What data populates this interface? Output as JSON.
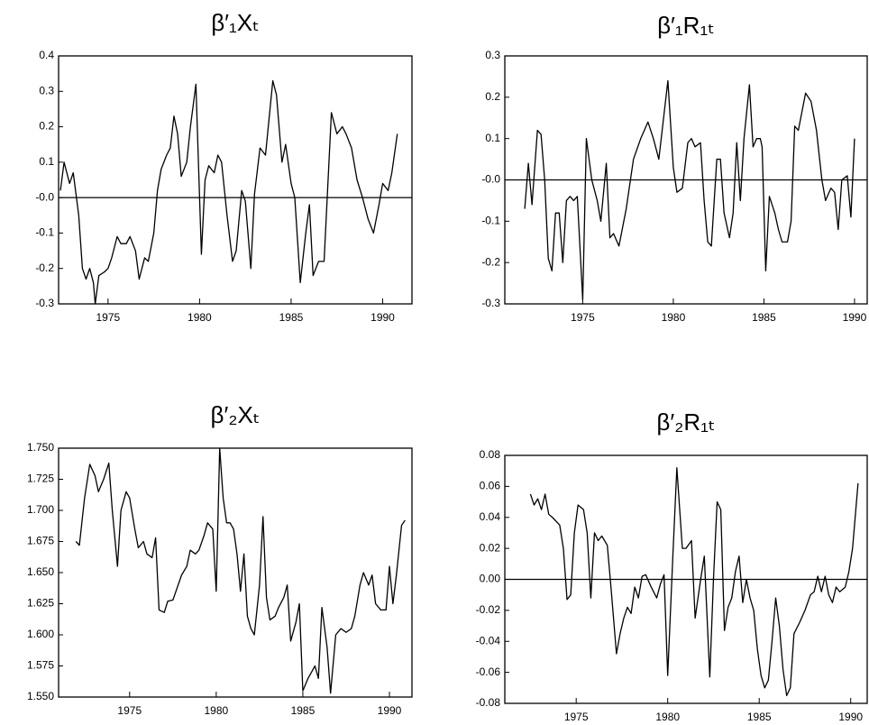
{
  "chart_data": [
    {
      "type": "line",
      "title": "β′₁Xₜ",
      "color": "#000000",
      "zero_line": true,
      "xlim": [
        1972.3,
        1991.6
      ],
      "xticks": [
        1975,
        1980,
        1985,
        1990
      ],
      "ylim": [
        -0.3,
        0.4
      ],
      "yticks": [
        -0.3,
        -0.2,
        -0.1,
        {
          "value": 0,
          "label": "-0.0"
        },
        0.1,
        0.2,
        0.3,
        0.4
      ],
      "x": [
        1972.4,
        1972.6,
        1972.9,
        1973.1,
        1973.4,
        1973.6,
        1973.8,
        1974.0,
        1974.2,
        1974.3,
        1974.5,
        1974.8,
        1975.0,
        1975.2,
        1975.5,
        1975.7,
        1976.0,
        1976.2,
        1976.5,
        1976.7,
        1977.0,
        1977.2,
        1977.5,
        1977.7,
        1977.9,
        1978.2,
        1978.4,
        1978.6,
        1978.8,
        1979.0,
        1979.3,
        1979.5,
        1979.8,
        1980.1,
        1980.3,
        1980.5,
        1980.8,
        1981.0,
        1981.2,
        1981.5,
        1981.8,
        1982.0,
        1982.3,
        1982.5,
        1982.8,
        1983.0,
        1983.3,
        1983.6,
        1984.0,
        1984.2,
        1984.5,
        1984.7,
        1985.0,
        1985.2,
        1985.5,
        1985.8,
        1986.0,
        1986.2,
        1986.5,
        1986.8,
        1987.2,
        1987.5,
        1987.8,
        1988.0,
        1988.3,
        1988.6,
        1988.9,
        1989.2,
        1989.5,
        1989.8,
        1990.0,
        1990.3,
        1990.5,
        1990.8
      ],
      "values": [
        0.02,
        0.1,
        0.04,
        0.07,
        -0.05,
        -0.2,
        -0.23,
        -0.2,
        -0.24,
        -0.3,
        -0.22,
        -0.21,
        -0.2,
        -0.17,
        -0.11,
        -0.13,
        -0.13,
        -0.11,
        -0.15,
        -0.23,
        -0.17,
        -0.18,
        -0.1,
        0.02,
        0.08,
        0.12,
        0.14,
        0.23,
        0.18,
        0.06,
        0.1,
        0.2,
        0.32,
        -0.16,
        0.05,
        0.09,
        0.07,
        0.12,
        0.1,
        -0.05,
        -0.18,
        -0.15,
        0.02,
        -0.01,
        -0.2,
        0.01,
        0.14,
        0.12,
        0.33,
        0.29,
        0.1,
        0.15,
        0.04,
        0.0,
        -0.24,
        -0.1,
        -0.02,
        -0.22,
        -0.18,
        -0.18,
        0.24,
        0.18,
        0.2,
        0.18,
        0.14,
        0.05,
        0.0,
        -0.06,
        -0.1,
        -0.02,
        0.04,
        0.02,
        0.07,
        0.18
      ]
    },
    {
      "type": "line",
      "title": "β′₁R₁ₜ",
      "color": "#000000",
      "zero_line": true,
      "xlim": [
        1970.7,
        1990.7
      ],
      "xticks": [
        1975,
        1980,
        1985,
        1990
      ],
      "ylim": [
        -0.3,
        0.3
      ],
      "yticks": [
        -0.3,
        -0.2,
        -0.1,
        {
          "value": 0,
          "label": "-0.0"
        },
        0.1,
        0.2,
        0.3
      ],
      "x": [
        1971.8,
        1972.0,
        1972.2,
        1972.5,
        1972.7,
        1972.9,
        1973.1,
        1973.3,
        1973.5,
        1973.7,
        1973.9,
        1974.1,
        1974.3,
        1974.5,
        1974.7,
        1975.0,
        1975.2,
        1975.5,
        1975.8,
        1976.0,
        1976.3,
        1976.5,
        1976.7,
        1977.0,
        1977.4,
        1977.8,
        1978.2,
        1978.6,
        1978.9,
        1979.2,
        1979.7,
        1980.0,
        1980.2,
        1980.5,
        1980.8,
        1981.0,
        1981.2,
        1981.5,
        1981.7,
        1981.9,
        1982.1,
        1982.4,
        1982.6,
        1982.8,
        1983.1,
        1983.3,
        1983.5,
        1983.7,
        1983.9,
        1984.2,
        1984.4,
        1984.6,
        1984.8,
        1984.9,
        1985.1,
        1985.3,
        1985.6,
        1985.8,
        1986.0,
        1986.3,
        1986.5,
        1986.7,
        1986.9,
        1987.3,
        1987.6,
        1987.9,
        1988.2,
        1988.4,
        1988.7,
        1988.9,
        1989.1,
        1989.3,
        1989.6,
        1989.8,
        1990.0
      ],
      "values": [
        -0.07,
        0.04,
        -0.06,
        0.12,
        0.11,
        0.0,
        -0.19,
        -0.22,
        -0.08,
        -0.08,
        -0.2,
        -0.05,
        -0.04,
        -0.05,
        -0.04,
        -0.29,
        0.1,
        0.0,
        -0.05,
        -0.1,
        0.04,
        -0.14,
        -0.13,
        -0.16,
        -0.07,
        0.05,
        0.1,
        0.14,
        0.1,
        0.05,
        0.24,
        0.03,
        -0.03,
        -0.02,
        0.09,
        0.1,
        0.08,
        0.09,
        -0.05,
        -0.15,
        -0.16,
        0.05,
        0.05,
        -0.08,
        -0.14,
        -0.08,
        0.09,
        -0.05,
        0.1,
        0.23,
        0.08,
        0.1,
        0.1,
        0.08,
        -0.22,
        -0.04,
        -0.08,
        -0.12,
        -0.15,
        -0.15,
        -0.1,
        0.13,
        0.12,
        0.21,
        0.19,
        0.12,
        0.0,
        -0.05,
        -0.02,
        -0.03,
        -0.12,
        0.0,
        0.01,
        -0.09,
        0.1
      ]
    },
    {
      "type": "line",
      "title": "β′₂Xₜ",
      "color": "#000000",
      "zero_line": false,
      "xlim": [
        1970.9,
        1991.3
      ],
      "xticks": [
        1975,
        1980,
        1985,
        1990
      ],
      "ylim": [
        1.55,
        1.75
      ],
      "yticks": [
        {
          "value": 1.55,
          "label": "1.550"
        },
        {
          "value": 1.575,
          "label": "1.575"
        },
        {
          "value": 1.6,
          "label": "1.600"
        },
        {
          "value": 1.625,
          "label": "1.625"
        },
        {
          "value": 1.65,
          "label": "1.650"
        },
        {
          "value": 1.675,
          "label": "1.675"
        },
        {
          "value": 1.7,
          "label": "1.700"
        },
        {
          "value": 1.725,
          "label": "1.725"
        },
        {
          "value": 1.75,
          "label": "1.750"
        }
      ],
      "x": [
        1971.9,
        1972.1,
        1972.4,
        1972.7,
        1973.0,
        1973.2,
        1973.5,
        1973.8,
        1974.0,
        1974.3,
        1974.5,
        1974.8,
        1975.0,
        1975.3,
        1975.5,
        1975.8,
        1976.0,
        1976.3,
        1976.5,
        1976.7,
        1977.0,
        1977.2,
        1977.5,
        1977.8,
        1978.0,
        1978.3,
        1978.5,
        1978.8,
        1979.0,
        1979.3,
        1979.5,
        1979.8,
        1980.0,
        1980.2,
        1980.4,
        1980.6,
        1980.8,
        1981.0,
        1981.2,
        1981.4,
        1981.6,
        1981.8,
        1982.0,
        1982.2,
        1982.5,
        1982.7,
        1982.9,
        1983.1,
        1983.4,
        1983.6,
        1983.9,
        1984.1,
        1984.3,
        1984.6,
        1984.8,
        1985.0,
        1985.3,
        1985.5,
        1985.7,
        1985.9,
        1986.1,
        1986.4,
        1986.6,
        1986.9,
        1987.2,
        1987.5,
        1987.8,
        1988.0,
        1988.3,
        1988.5,
        1988.8,
        1989.0,
        1989.2,
        1989.5,
        1989.8,
        1990.0,
        1990.2,
        1990.4,
        1990.7,
        1990.9
      ],
      "values": [
        1.675,
        1.672,
        1.71,
        1.737,
        1.728,
        1.715,
        1.725,
        1.738,
        1.7,
        1.655,
        1.7,
        1.715,
        1.71,
        1.685,
        1.67,
        1.675,
        1.665,
        1.662,
        1.678,
        1.62,
        1.618,
        1.627,
        1.628,
        1.64,
        1.648,
        1.655,
        1.668,
        1.665,
        1.668,
        1.68,
        1.69,
        1.685,
        1.635,
        1.75,
        1.71,
        1.69,
        1.69,
        1.685,
        1.665,
        1.635,
        1.665,
        1.615,
        1.605,
        1.6,
        1.64,
        1.695,
        1.63,
        1.612,
        1.615,
        1.622,
        1.63,
        1.64,
        1.595,
        1.61,
        1.625,
        1.555,
        1.565,
        1.57,
        1.575,
        1.565,
        1.622,
        1.59,
        1.553,
        1.6,
        1.605,
        1.602,
        1.605,
        1.615,
        1.64,
        1.65,
        1.64,
        1.648,
        1.625,
        1.62,
        1.62,
        1.655,
        1.625,
        1.648,
        1.688,
        1.692
      ]
    },
    {
      "type": "line",
      "title": "β′₂R₁ₜ",
      "color": "#000000",
      "zero_line": true,
      "xlim": [
        1971.1,
        1990.9
      ],
      "xticks": [
        1975,
        1980,
        1985,
        1990
      ],
      "ylim": [
        -0.08,
        0.08
      ],
      "yticks": [
        -0.08,
        -0.06,
        -0.04,
        -0.02,
        {
          "value": 0,
          "label": "0.00"
        },
        0.02,
        0.04,
        0.06,
        0.08
      ],
      "x": [
        1972.5,
        1972.7,
        1972.9,
        1973.1,
        1973.3,
        1973.5,
        1973.7,
        1974.1,
        1974.3,
        1974.5,
        1974.7,
        1974.9,
        1975.1,
        1975.4,
        1975.6,
        1975.8,
        1976.0,
        1976.2,
        1976.4,
        1976.7,
        1976.9,
        1977.2,
        1977.4,
        1977.6,
        1977.8,
        1978.0,
        1978.2,
        1978.4,
        1978.6,
        1978.8,
        1979.1,
        1979.4,
        1979.6,
        1979.8,
        1980.0,
        1980.3,
        1980.5,
        1980.8,
        1981.0,
        1981.3,
        1981.5,
        1981.8,
        1982.0,
        1982.3,
        1982.5,
        1982.7,
        1982.9,
        1983.1,
        1983.3,
        1983.5,
        1983.7,
        1983.9,
        1984.1,
        1984.3,
        1984.5,
        1984.7,
        1984.9,
        1985.1,
        1985.3,
        1985.5,
        1985.7,
        1985.9,
        1986.1,
        1986.3,
        1986.5,
        1986.7,
        1986.9,
        1987.2,
        1987.5,
        1987.8,
        1988.0,
        1988.2,
        1988.4,
        1988.6,
        1988.8,
        1989.0,
        1989.2,
        1989.4,
        1989.7,
        1989.9,
        1990.1,
        1990.4
      ],
      "values": [
        0.055,
        0.048,
        0.052,
        0.045,
        0.055,
        0.042,
        0.04,
        0.035,
        0.02,
        -0.013,
        -0.01,
        0.03,
        0.048,
        0.045,
        0.03,
        -0.012,
        0.03,
        0.025,
        0.028,
        0.022,
        -0.005,
        -0.048,
        -0.035,
        -0.025,
        -0.018,
        -0.022,
        -0.005,
        -0.012,
        0.002,
        0.003,
        -0.005,
        -0.012,
        -0.003,
        0.003,
        -0.062,
        0.02,
        0.072,
        0.02,
        0.02,
        0.025,
        -0.025,
        0.0,
        0.015,
        -0.063,
        0.0,
        0.05,
        0.045,
        -0.033,
        -0.018,
        -0.012,
        0.005,
        0.015,
        -0.015,
        0.0,
        -0.012,
        -0.02,
        -0.045,
        -0.062,
        -0.07,
        -0.065,
        -0.04,
        -0.012,
        -0.03,
        -0.058,
        -0.075,
        -0.07,
        -0.035,
        -0.028,
        -0.02,
        -0.01,
        -0.008,
        0.002,
        -0.008,
        0.002,
        -0.01,
        -0.015,
        -0.005,
        -0.008,
        -0.005,
        0.005,
        0.02,
        0.062
      ]
    }
  ]
}
